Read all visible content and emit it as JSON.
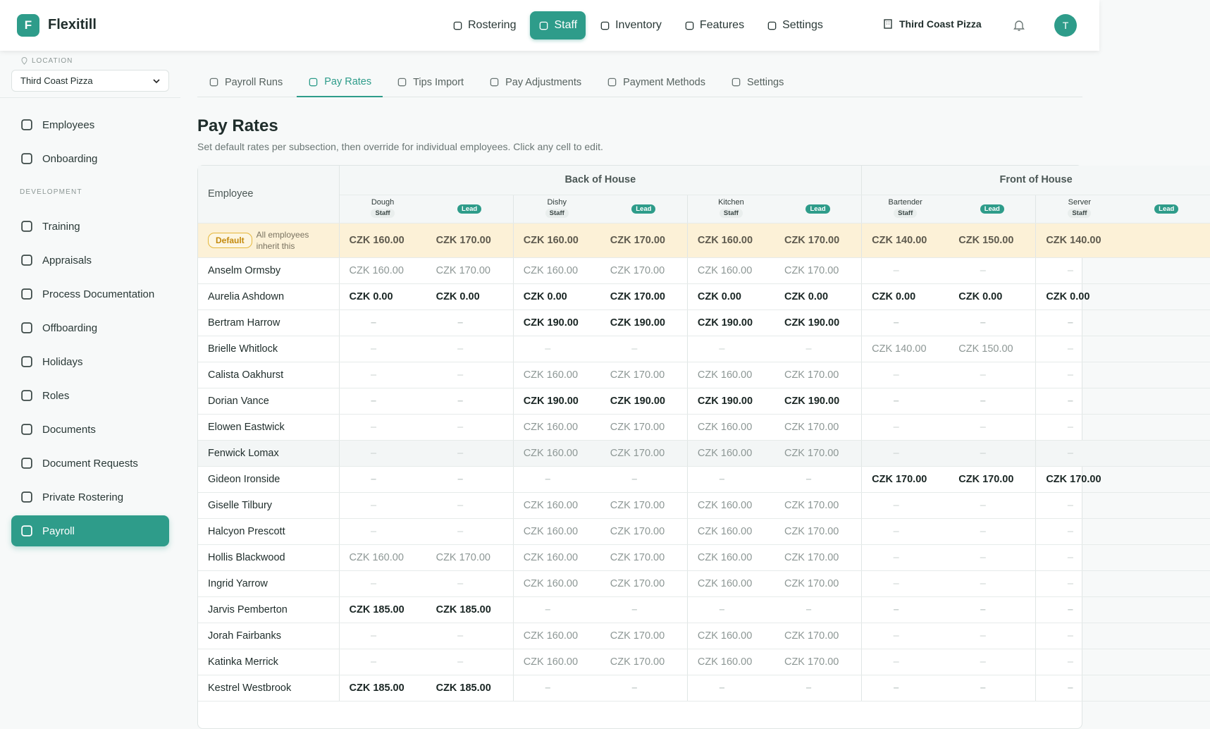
{
  "header": {
    "brand_initial": "F",
    "brand": "Flexitill",
    "nav": [
      "Rostering",
      "Staff",
      "Inventory",
      "Features",
      "Settings"
    ],
    "active_nav": 1,
    "location": "Third Coast Pizza",
    "avatar": "T"
  },
  "sidebar": {
    "location_label": "LOCATION",
    "location": "Third Coast Pizza",
    "groups": [
      {
        "items": [
          "Employees",
          "Onboarding"
        ]
      },
      {
        "label": "DEVELOPMENT",
        "items": [
          "Training",
          "Appraisals",
          "Process Documentation",
          "Offboarding",
          "Holidays",
          "Roles",
          "Documents",
          "Document Requests",
          "Private Rostering",
          "Payroll"
        ]
      }
    ],
    "active_item": [
      1,
      9
    ]
  },
  "tabs": {
    "items": [
      "Payroll Runs",
      "Pay Rates",
      "Tips Import",
      "Pay Adjustments",
      "Payment Methods",
      "Settings"
    ],
    "active": 1
  },
  "page": {
    "title": "Pay Rates",
    "subtitle": "Set default rates per subsection, then override for individual employees. Click any cell to edit."
  },
  "table": {
    "employee_header": "Employee",
    "role_labels": [
      "Staff",
      "Lead"
    ],
    "groups": [
      {
        "name": "Back of House",
        "subsections": [
          "Dough",
          "Dishy",
          "Kitchen"
        ]
      },
      {
        "name": "Front of House",
        "subsections": [
          "Bartender",
          "Server"
        ]
      }
    ],
    "default": {
      "badge": "Default",
      "note": "All employees inherit this",
      "rates": [
        "CZK 160.00",
        "CZK 170.00",
        "CZK 160.00",
        "CZK 170.00",
        "CZK 160.00",
        "CZK 170.00",
        "CZK 140.00",
        "CZK 150.00",
        "CZK 140.00"
      ]
    },
    "rows": [
      {
        "name": "Anselm Ormsby",
        "override": false,
        "rates": [
          "CZK 160.00",
          "CZK 170.00",
          "CZK 160.00",
          "CZK 170.00",
          "CZK 160.00",
          "CZK 170.00",
          "–",
          "–",
          "–"
        ]
      },
      {
        "name": "Aurelia Ashdown",
        "override": true,
        "rates": [
          "CZK 0.00",
          "CZK 0.00",
          "CZK 0.00",
          "CZK 170.00",
          "CZK 0.00",
          "CZK 0.00",
          "CZK 0.00",
          "CZK 0.00",
          "CZK 0.00"
        ]
      },
      {
        "name": "Bertram Harrow",
        "override": true,
        "rates": [
          "–",
          "–",
          "CZK 190.00",
          "CZK 190.00",
          "CZK 190.00",
          "CZK 190.00",
          "–",
          "–",
          "–"
        ]
      },
      {
        "name": "Brielle Whitlock",
        "override": false,
        "rates": [
          "–",
          "–",
          "–",
          "–",
          "–",
          "–",
          "CZK 140.00",
          "CZK 150.00",
          "–"
        ]
      },
      {
        "name": "Calista Oakhurst",
        "override": false,
        "rates": [
          "–",
          "–",
          "CZK 160.00",
          "CZK 170.00",
          "CZK 160.00",
          "CZK 170.00",
          "–",
          "–",
          "–"
        ]
      },
      {
        "name": "Dorian Vance",
        "override": true,
        "rates": [
          "–",
          "–",
          "CZK 190.00",
          "CZK 190.00",
          "CZK 190.00",
          "CZK 190.00",
          "–",
          "–",
          "–"
        ]
      },
      {
        "name": "Elowen Eastwick",
        "override": false,
        "rates": [
          "–",
          "–",
          "CZK 160.00",
          "CZK 170.00",
          "CZK 160.00",
          "CZK 170.00",
          "–",
          "–",
          "–"
        ]
      },
      {
        "name": "Fenwick Lomax",
        "override": false,
        "rates": [
          "–",
          "–",
          "CZK 160.00",
          "CZK 170.00",
          "CZK 160.00",
          "CZK 170.00",
          "–",
          "–",
          "–"
        ]
      },
      {
        "name": "Gideon Ironside",
        "override": true,
        "rates": [
          "–",
          "–",
          "–",
          "–",
          "–",
          "–",
          "CZK 170.00",
          "CZK 170.00",
          "CZK 170.00"
        ]
      },
      {
        "name": "Giselle Tilbury",
        "override": false,
        "rates": [
          "–",
          "–",
          "CZK 160.00",
          "CZK 170.00",
          "CZK 160.00",
          "CZK 170.00",
          "–",
          "–",
          "–"
        ]
      },
      {
        "name": "Halcyon Prescott",
        "override": false,
        "rates": [
          "–",
          "–",
          "CZK 160.00",
          "CZK 170.00",
          "CZK 160.00",
          "CZK 170.00",
          "–",
          "–",
          "–"
        ]
      },
      {
        "name": "Hollis Blackwood",
        "override": false,
        "rates": [
          "CZK 160.00",
          "CZK 170.00",
          "CZK 160.00",
          "CZK 170.00",
          "CZK 160.00",
          "CZK 170.00",
          "–",
          "–",
          "–"
        ]
      },
      {
        "name": "Ingrid Yarrow",
        "override": false,
        "rates": [
          "–",
          "–",
          "CZK 160.00",
          "CZK 170.00",
          "CZK 160.00",
          "CZK 170.00",
          "–",
          "–",
          "–"
        ]
      },
      {
        "name": "Jarvis Pemberton",
        "override": true,
        "rates": [
          "CZK 185.00",
          "CZK 185.00",
          "–",
          "–",
          "–",
          "–",
          "–",
          "–",
          "–"
        ]
      },
      {
        "name": "Jorah Fairbanks",
        "override": false,
        "rates": [
          "–",
          "–",
          "CZK 160.00",
          "CZK 170.00",
          "CZK 160.00",
          "CZK 170.00",
          "–",
          "–",
          "–"
        ]
      },
      {
        "name": "Katinka Merrick",
        "override": false,
        "rates": [
          "–",
          "–",
          "CZK 160.00",
          "CZK 170.00",
          "CZK 160.00",
          "CZK 170.00",
          "–",
          "–",
          "–"
        ]
      },
      {
        "name": "Kestrel Westbrook",
        "override": true,
        "rates": [
          "CZK 185.00",
          "CZK 185.00",
          "–",
          "–",
          "–",
          "–",
          "–",
          "–",
          "–"
        ]
      }
    ]
  }
}
